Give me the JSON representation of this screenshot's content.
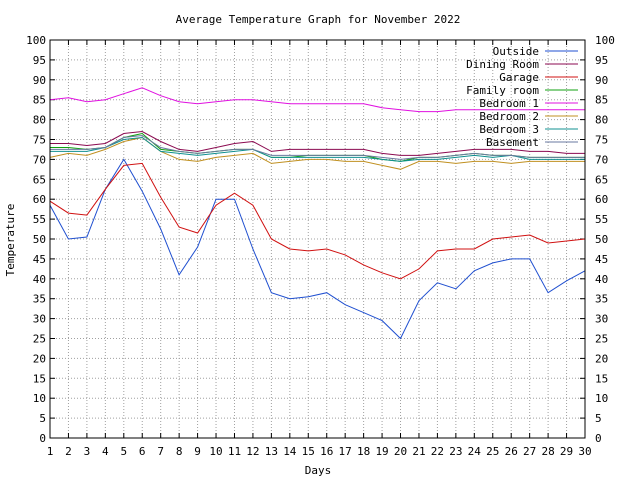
{
  "chart_data": {
    "type": "line",
    "title": "Average Temperature Graph for November 2022",
    "xlabel": "Days",
    "ylabel": "Temperature",
    "xlim": [
      1,
      30
    ],
    "ylim": [
      0,
      100
    ],
    "x_ticks": [
      1,
      2,
      3,
      4,
      5,
      6,
      7,
      8,
      9,
      10,
      11,
      12,
      13,
      14,
      15,
      16,
      17,
      18,
      19,
      20,
      21,
      22,
      23,
      24,
      25,
      26,
      27,
      28,
      29,
      30
    ],
    "y_ticks": [
      0,
      5,
      10,
      15,
      20,
      25,
      30,
      35,
      40,
      45,
      50,
      55,
      60,
      65,
      70,
      75,
      80,
      85,
      90,
      95,
      100
    ],
    "grid": true,
    "legend_position": "top-right",
    "x": [
      1,
      2,
      3,
      4,
      5,
      6,
      7,
      8,
      9,
      10,
      11,
      12,
      13,
      14,
      15,
      16,
      17,
      18,
      19,
      20,
      21,
      22,
      23,
      24,
      25,
      26,
      27,
      28,
      29,
      30
    ],
    "series": [
      {
        "name": "Outside",
        "color": "#1f4fd0",
        "values": [
          58.5,
          50,
          50.5,
          62.5,
          70,
          62,
          52.5,
          41,
          48,
          60,
          60,
          47.5,
          36.5,
          35,
          35.5,
          36.5,
          33.5,
          31.5,
          29.5,
          25,
          34.5,
          39,
          37.5,
          42,
          44,
          45,
          45,
          36.5,
          39.5,
          42
        ]
      },
      {
        "name": "Dining Room",
        "color": "#8b0a50",
        "values": [
          74,
          74,
          73.5,
          74,
          76.5,
          77,
          74.5,
          72.5,
          72,
          73,
          74,
          74.5,
          72,
          72.5,
          72.5,
          72.5,
          72.5,
          72.5,
          71.5,
          71,
          71,
          71.5,
          72,
          72.5,
          72.5,
          72.5,
          72,
          72,
          71.5,
          71.5
        ]
      },
      {
        "name": "Garage",
        "color": "#d01010",
        "values": [
          59.5,
          56.5,
          56,
          62.5,
          68.5,
          69,
          60.5,
          53,
          51.5,
          58.5,
          61.5,
          58.5,
          50,
          47.5,
          47,
          47.5,
          46,
          43.5,
          41.5,
          40,
          42.5,
          47,
          47.5,
          47.5,
          50,
          50.5,
          51,
          49,
          49.5,
          50
        ]
      },
      {
        "name": "Family room",
        "color": "#10a010",
        "values": [
          73,
          73,
          72.5,
          73,
          75.5,
          76.5,
          72.5,
          72,
          71.5,
          72,
          72.5,
          72.5,
          70.5,
          70.5,
          71,
          71,
          71,
          71,
          70,
          69.5,
          70.5,
          70.5,
          71,
          71.5,
          71,
          71,
          70.5,
          70.5,
          70.5,
          70.5
        ]
      },
      {
        "name": "Bedroom 1",
        "color": "#e010e0",
        "values": [
          85,
          85.5,
          84.5,
          85,
          86.5,
          88,
          86,
          84.5,
          84,
          84.5,
          85,
          85,
          84.5,
          84,
          84,
          84,
          84,
          84,
          83,
          82.5,
          82,
          82,
          82.5,
          82.5,
          82.5,
          82.5,
          82.5,
          82.5,
          82.5,
          82.5
        ]
      },
      {
        "name": "Bedroom 2",
        "color": "#c09020",
        "values": [
          70.5,
          71.5,
          71,
          72.5,
          74.5,
          75.5,
          72,
          70,
          69.5,
          70.5,
          71,
          71.5,
          69,
          69.5,
          70,
          70,
          69.5,
          69.5,
          68.5,
          67.5,
          69.5,
          69.5,
          69,
          69.5,
          69.5,
          69,
          69.5,
          69.5,
          69.5,
          69.5
        ]
      },
      {
        "name": "Bedroom 3",
        "color": "#109090",
        "values": [
          72,
          72,
          72,
          73,
          75,
          75.5,
          72,
          71.5,
          71,
          71.5,
          72,
          72.5,
          70.5,
          70.5,
          70.5,
          70.5,
          70.5,
          70.5,
          70,
          69.5,
          70,
          70,
          70.5,
          71,
          70.5,
          71,
          70,
          70,
          70,
          70
        ]
      },
      {
        "name": "Basement",
        "color": "#6a7aa0",
        "values": [
          72.5,
          72.5,
          72.5,
          73,
          75.5,
          76,
          73,
          72,
          71.5,
          72,
          72.5,
          72.5,
          71,
          71,
          71,
          71,
          71,
          71,
          70.5,
          70,
          70.5,
          70.5,
          71,
          71.5,
          71,
          71,
          70.5,
          70.5,
          70.5,
          70.5
        ]
      }
    ]
  }
}
